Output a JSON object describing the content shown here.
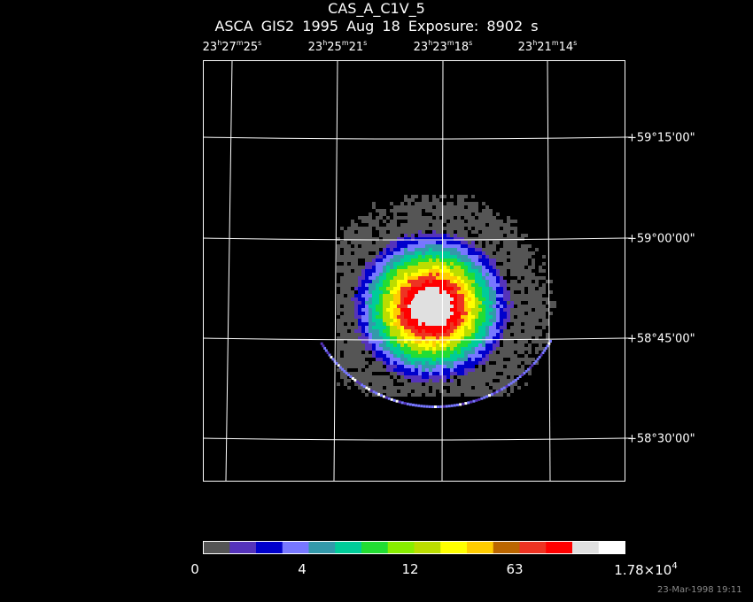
{
  "header": {
    "title": "CAS_A_C1V_5",
    "subtitle": "ASCA GIS2   1995 Aug 18    Exposure:  8902 s"
  },
  "ra_labels": [
    {
      "h": "23",
      "m": "27",
      "s": "25"
    },
    {
      "h": "23",
      "m": "25",
      "s": "21"
    },
    {
      "h": "23",
      "m": "23",
      "s": "18"
    },
    {
      "h": "23",
      "m": "21",
      "s": "14"
    }
  ],
  "ra_units": {
    "h": "h",
    "m": "m",
    "s": "s"
  },
  "dec_labels": [
    "+59°15'00\"",
    "+59°00'00\"",
    "+58°45'00\"",
    "+58°30'00\""
  ],
  "colorbar": {
    "colors": [
      "#555555",
      "#5533bb",
      "#0000cc",
      "#7777ff",
      "#3399aa",
      "#00cc99",
      "#22dd33",
      "#88ee00",
      "#bbdd00",
      "#ffff00",
      "#ffcc00",
      "#bb6600",
      "#ee3322",
      "#ff0000",
      "#e0e0e0",
      "#ffffff"
    ],
    "labels": [
      {
        "text": "0"
      },
      {
        "text": "4"
      },
      {
        "text": "12"
      },
      {
        "text": "63"
      },
      {
        "text": "1.78×10",
        "sup": "4"
      }
    ]
  },
  "timestamp": "23-Mar-1998 19:11"
}
